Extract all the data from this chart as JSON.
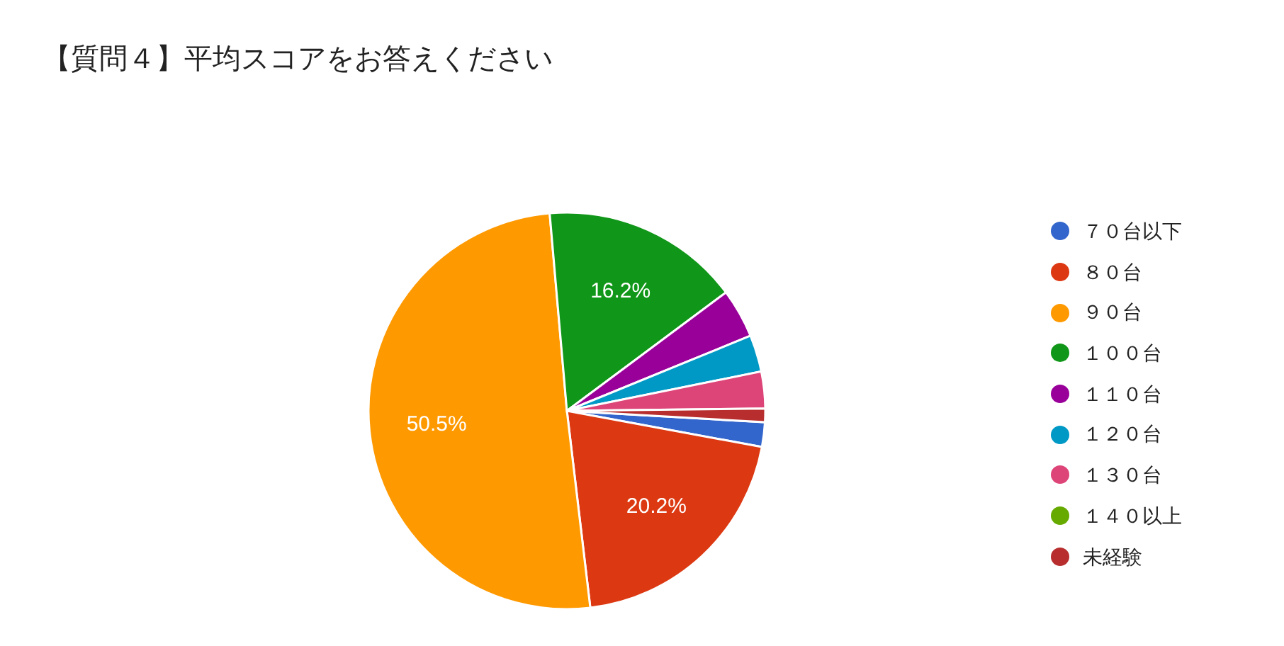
{
  "chart_data": {
    "type": "pie",
    "title": "【質問４】平均スコアをお答えください",
    "categories": [
      "７０台以下",
      "８０台",
      "９０台",
      "１００台",
      "１１０台",
      "１２０台",
      "１３０台",
      "１４０以上",
      "未経験"
    ],
    "values": [
      2,
      20.2,
      50.5,
      16.2,
      4,
      3,
      3,
      0,
      1.1
    ],
    "colors": [
      "#3366cc",
      "#dc3912",
      "#ff9900",
      "#109618",
      "#990099",
      "#0099c6",
      "#dd4477",
      "#66aa00",
      "#b82e2e"
    ],
    "value_labels": [
      null,
      "20.2%",
      "50.5%",
      "16.2%",
      null,
      null,
      null,
      null,
      null
    ],
    "legend": "right"
  }
}
